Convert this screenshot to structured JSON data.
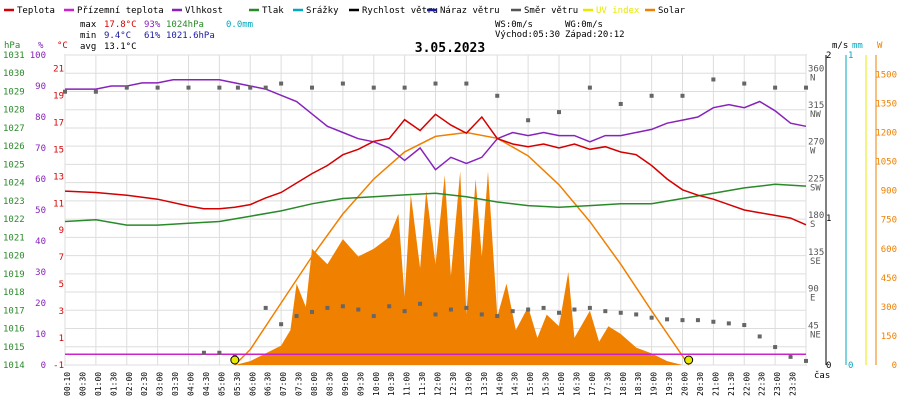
{
  "chart_data": {
    "type": "line",
    "title": "3.05.2023",
    "legend": [
      {
        "name": "Teplota",
        "color": "#d40000",
        "label_color": "#000000"
      },
      {
        "name": "Přízemní teplota",
        "color": "#cc22cc",
        "label_color": "#000000"
      },
      {
        "name": "Vlhkost",
        "color": "#8822bb",
        "label_color": "#000000"
      },
      {
        "name": "Tlak",
        "color": "#2a8a2a",
        "label_color": "#000000"
      },
      {
        "name": "Srážky",
        "color": "#00a8c0",
        "label_color": "#000000"
      },
      {
        "name": "Rychlost větru",
        "color": "#000000",
        "label_color": "#000000"
      },
      {
        "name": "Náraz větru",
        "color": "#1a1aa0",
        "label_color": "#000000"
      },
      {
        "name": "Směr větru",
        "color": "#555555",
        "label_color": "#000000"
      },
      {
        "name": "UV index",
        "color": "#e8e800",
        "label_color": "#e8e800"
      },
      {
        "name": "Solar",
        "color": "#f08000",
        "label_color": "#000000"
      }
    ],
    "stats": {
      "max_label": "max",
      "max_temp": "17.8°C",
      "max_hum": "93%",
      "max_press": "1024hPa",
      "rain": "0.0mm",
      "min_label": "min",
      "min_temp": "9.4°C",
      "min_hum": "61%",
      "min_press": "1021.6hPa",
      "avg_label": "avg",
      "avg_temp": "13.1°C"
    },
    "wind_info": {
      "ws": "WS:0m/s",
      "wg": "WG:0m/s",
      "sunrise": "Východ:05:30",
      "sunset": "Západ:20:12"
    },
    "axes": {
      "hpa_unit": "hPa",
      "pct_unit": "%",
      "c_unit": "°C",
      "ms_unit": "m/s",
      "mm_unit": "mm",
      "w_unit": "W",
      "x_unit": "čas",
      "hpa_ticks": [
        "1031",
        "1030",
        "1029",
        "1028",
        "1027",
        "1026",
        "1025",
        "1024",
        "1023",
        "1022",
        "1021",
        "1020",
        "1019",
        "1018",
        "1017",
        "1016",
        "1015",
        "1014"
      ],
      "pct_ticks": [
        "100",
        "90",
        "80",
        "70",
        "60",
        "50",
        "40",
        "30",
        "20",
        "10",
        "0"
      ],
      "c_ticks": [
        "21",
        "19",
        "17",
        "15",
        "13",
        "11",
        "9",
        "7",
        "5",
        "3",
        "1",
        "-1"
      ],
      "dir_ticks": [
        {
          "deg": "360",
          "dir": "N"
        },
        {
          "deg": "315",
          "dir": "NW"
        },
        {
          "deg": "270",
          "dir": "W"
        },
        {
          "deg": "225",
          "dir": "SW"
        },
        {
          "deg": "180",
          "dir": "S"
        },
        {
          "deg": "135",
          "dir": "SE"
        },
        {
          "deg": "90",
          "dir": "E"
        },
        {
          "deg": "45",
          "dir": "NE"
        }
      ],
      "ms_ticks": [
        "2",
        "1",
        "0"
      ],
      "mm_ticks": [
        "1",
        "0"
      ],
      "w_ticks": [
        "1500",
        "1350",
        "1200",
        "1050",
        "900",
        "750",
        "600",
        "450",
        "300",
        "150",
        "0"
      ],
      "x_ticks": [
        "00:10",
        "00:30",
        "01:00",
        "01:30",
        "02:00",
        "02:30",
        "03:00",
        "03:30",
        "04:00",
        "04:30",
        "05:00",
        "05:30",
        "06:00",
        "06:30",
        "07:00",
        "07:30",
        "08:00",
        "08:30",
        "09:00",
        "09:30",
        "10:00",
        "10:30",
        "11:00",
        "11:30",
        "12:00",
        "12:30",
        "13:00",
        "13:30",
        "14:00",
        "14:30",
        "15:00",
        "15:30",
        "16:00",
        "16:30",
        "17:00",
        "17:30",
        "18:00",
        "18:30",
        "19:00",
        "19:30",
        "20:00",
        "20:30",
        "21:00",
        "21:30",
        "22:00",
        "22:30",
        "23:00",
        "23:30"
      ]
    },
    "series_points": {
      "temperature_c": [
        [
          0,
          11.9
        ],
        [
          1,
          11.8
        ],
        [
          2,
          11.6
        ],
        [
          3,
          11.3
        ],
        [
          4,
          10.8
        ],
        [
          4.5,
          10.6
        ],
        [
          5,
          10.6
        ],
        [
          5.5,
          10.7
        ],
        [
          6,
          10.9
        ],
        [
          6.5,
          11.4
        ],
        [
          7,
          11.8
        ],
        [
          7.5,
          12.5
        ],
        [
          8,
          13.2
        ],
        [
          8.5,
          13.8
        ],
        [
          9,
          14.6
        ],
        [
          9.5,
          15.0
        ],
        [
          10,
          15.6
        ],
        [
          10.5,
          15.8
        ],
        [
          11,
          17.2
        ],
        [
          11.5,
          16.4
        ],
        [
          12,
          17.6
        ],
        [
          12.5,
          16.8
        ],
        [
          13,
          16.2
        ],
        [
          13.5,
          17.4
        ],
        [
          14,
          15.8
        ],
        [
          14.5,
          15.4
        ],
        [
          15,
          15.2
        ],
        [
          15.5,
          15.4
        ],
        [
          16,
          15.1
        ],
        [
          16.5,
          15.4
        ],
        [
          17,
          15.0
        ],
        [
          17.5,
          15.2
        ],
        [
          18,
          14.8
        ],
        [
          18.5,
          14.6
        ],
        [
          19,
          13.8
        ],
        [
          19.5,
          12.8
        ],
        [
          20,
          12.0
        ],
        [
          20.5,
          11.6
        ],
        [
          21,
          11.3
        ],
        [
          21.5,
          10.9
        ],
        [
          22,
          10.5
        ],
        [
          22.5,
          10.3
        ],
        [
          23,
          10.1
        ],
        [
          23.5,
          9.9
        ],
        [
          24,
          9.4
        ]
      ],
      "humidity_pct": [
        [
          0,
          89
        ],
        [
          0.5,
          89
        ],
        [
          1,
          89
        ],
        [
          1.5,
          90
        ],
        [
          2,
          90
        ],
        [
          2.5,
          91
        ],
        [
          3,
          91
        ],
        [
          3.5,
          92
        ],
        [
          4,
          92
        ],
        [
          4.5,
          92
        ],
        [
          5,
          92
        ],
        [
          5.5,
          91
        ],
        [
          6,
          90
        ],
        [
          6.5,
          89
        ],
        [
          7,
          87
        ],
        [
          7.5,
          85
        ],
        [
          8,
          81
        ],
        [
          8.5,
          77
        ],
        [
          9,
          75
        ],
        [
          9.5,
          73
        ],
        [
          10,
          72
        ],
        [
          10.5,
          70
        ],
        [
          11,
          66
        ],
        [
          11.5,
          70
        ],
        [
          12,
          63
        ],
        [
          12.5,
          67
        ],
        [
          13,
          65
        ],
        [
          13.5,
          67
        ],
        [
          14,
          73
        ],
        [
          14.5,
          75
        ],
        [
          15,
          74
        ],
        [
          15.5,
          75
        ],
        [
          16,
          74
        ],
        [
          16.5,
          74
        ],
        [
          17,
          72
        ],
        [
          17.5,
          74
        ],
        [
          18,
          74
        ],
        [
          18.5,
          75
        ],
        [
          19,
          76
        ],
        [
          19.5,
          78
        ],
        [
          20,
          79
        ],
        [
          20.5,
          80
        ],
        [
          21,
          83
        ],
        [
          21.5,
          84
        ],
        [
          22,
          83
        ],
        [
          22.5,
          85
        ],
        [
          23,
          82
        ],
        [
          23.5,
          78
        ],
        [
          24,
          77
        ]
      ],
      "pressure_hpa": [
        [
          0,
          1022.1
        ],
        [
          1,
          1022.2
        ],
        [
          2,
          1021.9
        ],
        [
          3,
          1021.9
        ],
        [
          4,
          1022.0
        ],
        [
          5,
          1022.1
        ],
        [
          6,
          1022.4
        ],
        [
          7,
          1022.7
        ],
        [
          8,
          1023.1
        ],
        [
          9,
          1023.4
        ],
        [
          10,
          1023.5
        ],
        [
          11,
          1023.6
        ],
        [
          12,
          1023.7
        ],
        [
          13,
          1023.5
        ],
        [
          14,
          1023.2
        ],
        [
          15,
          1023.0
        ],
        [
          16,
          1022.9
        ],
        [
          17,
          1023.0
        ],
        [
          18,
          1023.1
        ],
        [
          19,
          1023.1
        ],
        [
          20,
          1023.4
        ],
        [
          21,
          1023.7
        ],
        [
          22,
          1024.0
        ],
        [
          23,
          1024.2
        ],
        [
          24,
          1024.1
        ]
      ],
      "solar_theory_w": [
        [
          5.5,
          0
        ],
        [
          6,
          80
        ],
        [
          7,
          320
        ],
        [
          8,
          560
        ],
        [
          9,
          780
        ],
        [
          10,
          960
        ],
        [
          11,
          1100
        ],
        [
          12,
          1180
        ],
        [
          13,
          1200
        ],
        [
          14,
          1170
        ],
        [
          15,
          1080
        ],
        [
          16,
          930
        ],
        [
          17,
          740
        ],
        [
          18,
          520
        ],
        [
          19,
          280
        ],
        [
          20.2,
          0
        ]
      ],
      "solar_w": [
        [
          5.5,
          0
        ],
        [
          6,
          20
        ],
        [
          6.5,
          60
        ],
        [
          7,
          100
        ],
        [
          7.3,
          180
        ],
        [
          7.5,
          420
        ],
        [
          7.8,
          300
        ],
        [
          8,
          600
        ],
        [
          8.5,
          520
        ],
        [
          9,
          650
        ],
        [
          9.5,
          560
        ],
        [
          10,
          600
        ],
        [
          10.5,
          660
        ],
        [
          10.8,
          780
        ],
        [
          11,
          350
        ],
        [
          11.2,
          880
        ],
        [
          11.5,
          500
        ],
        [
          11.7,
          900
        ],
        [
          12,
          520
        ],
        [
          12.3,
          980
        ],
        [
          12.5,
          460
        ],
        [
          12.8,
          1000
        ],
        [
          13,
          260
        ],
        [
          13.3,
          960
        ],
        [
          13.5,
          560
        ],
        [
          13.7,
          1000
        ],
        [
          14,
          250
        ],
        [
          14.3,
          420
        ],
        [
          14.6,
          180
        ],
        [
          15,
          300
        ],
        [
          15.3,
          140
        ],
        [
          15.6,
          260
        ],
        [
          16,
          200
        ],
        [
          16.3,
          480
        ],
        [
          16.5,
          140
        ],
        [
          17,
          280
        ],
        [
          17.3,
          120
        ],
        [
          17.6,
          200
        ],
        [
          18,
          160
        ],
        [
          18.5,
          90
        ],
        [
          19,
          60
        ],
        [
          19.5,
          20
        ],
        [
          20,
          0
        ]
      ],
      "wind_dir_deg": [
        [
          0,
          335
        ],
        [
          1,
          335
        ],
        [
          2,
          340
        ],
        [
          3,
          340
        ],
        [
          4,
          340
        ],
        [
          5,
          340
        ],
        [
          5.6,
          340
        ],
        [
          6,
          340
        ],
        [
          6.5,
          340
        ],
        [
          7,
          345
        ],
        [
          8,
          340
        ],
        [
          9,
          345
        ],
        [
          10,
          340
        ],
        [
          11,
          340
        ],
        [
          12,
          345
        ],
        [
          13,
          345
        ],
        [
          14,
          330
        ],
        [
          15,
          300
        ],
        [
          16,
          310
        ],
        [
          17,
          340
        ],
        [
          18,
          320
        ],
        [
          19,
          330
        ],
        [
          20,
          330
        ],
        [
          21,
          350
        ],
        [
          22,
          345
        ],
        [
          23,
          340
        ],
        [
          24,
          340
        ]
      ],
      "wind_dir_low_deg": [
        [
          4.5,
          15
        ],
        [
          5,
          15
        ],
        [
          5.5,
          10
        ],
        [
          6.5,
          70
        ],
        [
          7,
          50
        ],
        [
          7.5,
          60
        ],
        [
          8,
          65
        ],
        [
          8.5,
          70
        ],
        [
          9,
          72
        ],
        [
          9.5,
          68
        ],
        [
          10,
          60
        ],
        [
          10.5,
          72
        ],
        [
          11,
          66
        ],
        [
          11.5,
          75
        ],
        [
          12,
          62
        ],
        [
          12.5,
          68
        ],
        [
          13,
          70
        ],
        [
          13.5,
          62
        ],
        [
          14,
          60
        ],
        [
          14.5,
          66
        ],
        [
          15,
          68
        ],
        [
          15.5,
          70
        ],
        [
          16,
          64
        ],
        [
          16.5,
          68
        ],
        [
          17,
          70
        ],
        [
          17.5,
          66
        ],
        [
          18,
          64
        ],
        [
          18.5,
          62
        ],
        [
          19,
          58
        ],
        [
          19.5,
          56
        ],
        [
          20,
          55
        ],
        [
          20.5,
          55
        ],
        [
          21,
          53
        ],
        [
          21.5,
          51
        ],
        [
          22,
          49
        ],
        [
          22.5,
          35
        ],
        [
          23,
          22
        ],
        [
          23.5,
          10
        ],
        [
          24,
          5
        ]
      ],
      "ground_temp_c": [
        [
          0,
          -0.2
        ],
        [
          24,
          -0.2
        ]
      ],
      "uv_index": [
        [
          0,
          0
        ],
        [
          24,
          0
        ]
      ]
    },
    "ylim_temp": [
      -1,
      22
    ],
    "ylim_hum": [
      0,
      100
    ],
    "ylim_press": [
      1014,
      1031.5
    ],
    "ylim_solar": [
      0,
      1600
    ],
    "ylim_dir": [
      0,
      380
    ],
    "markers": [
      {
        "x_hours": 5.5,
        "color": "#e8e800"
      },
      {
        "x_hours": 20.2,
        "color": "#e8e800"
      }
    ]
  }
}
